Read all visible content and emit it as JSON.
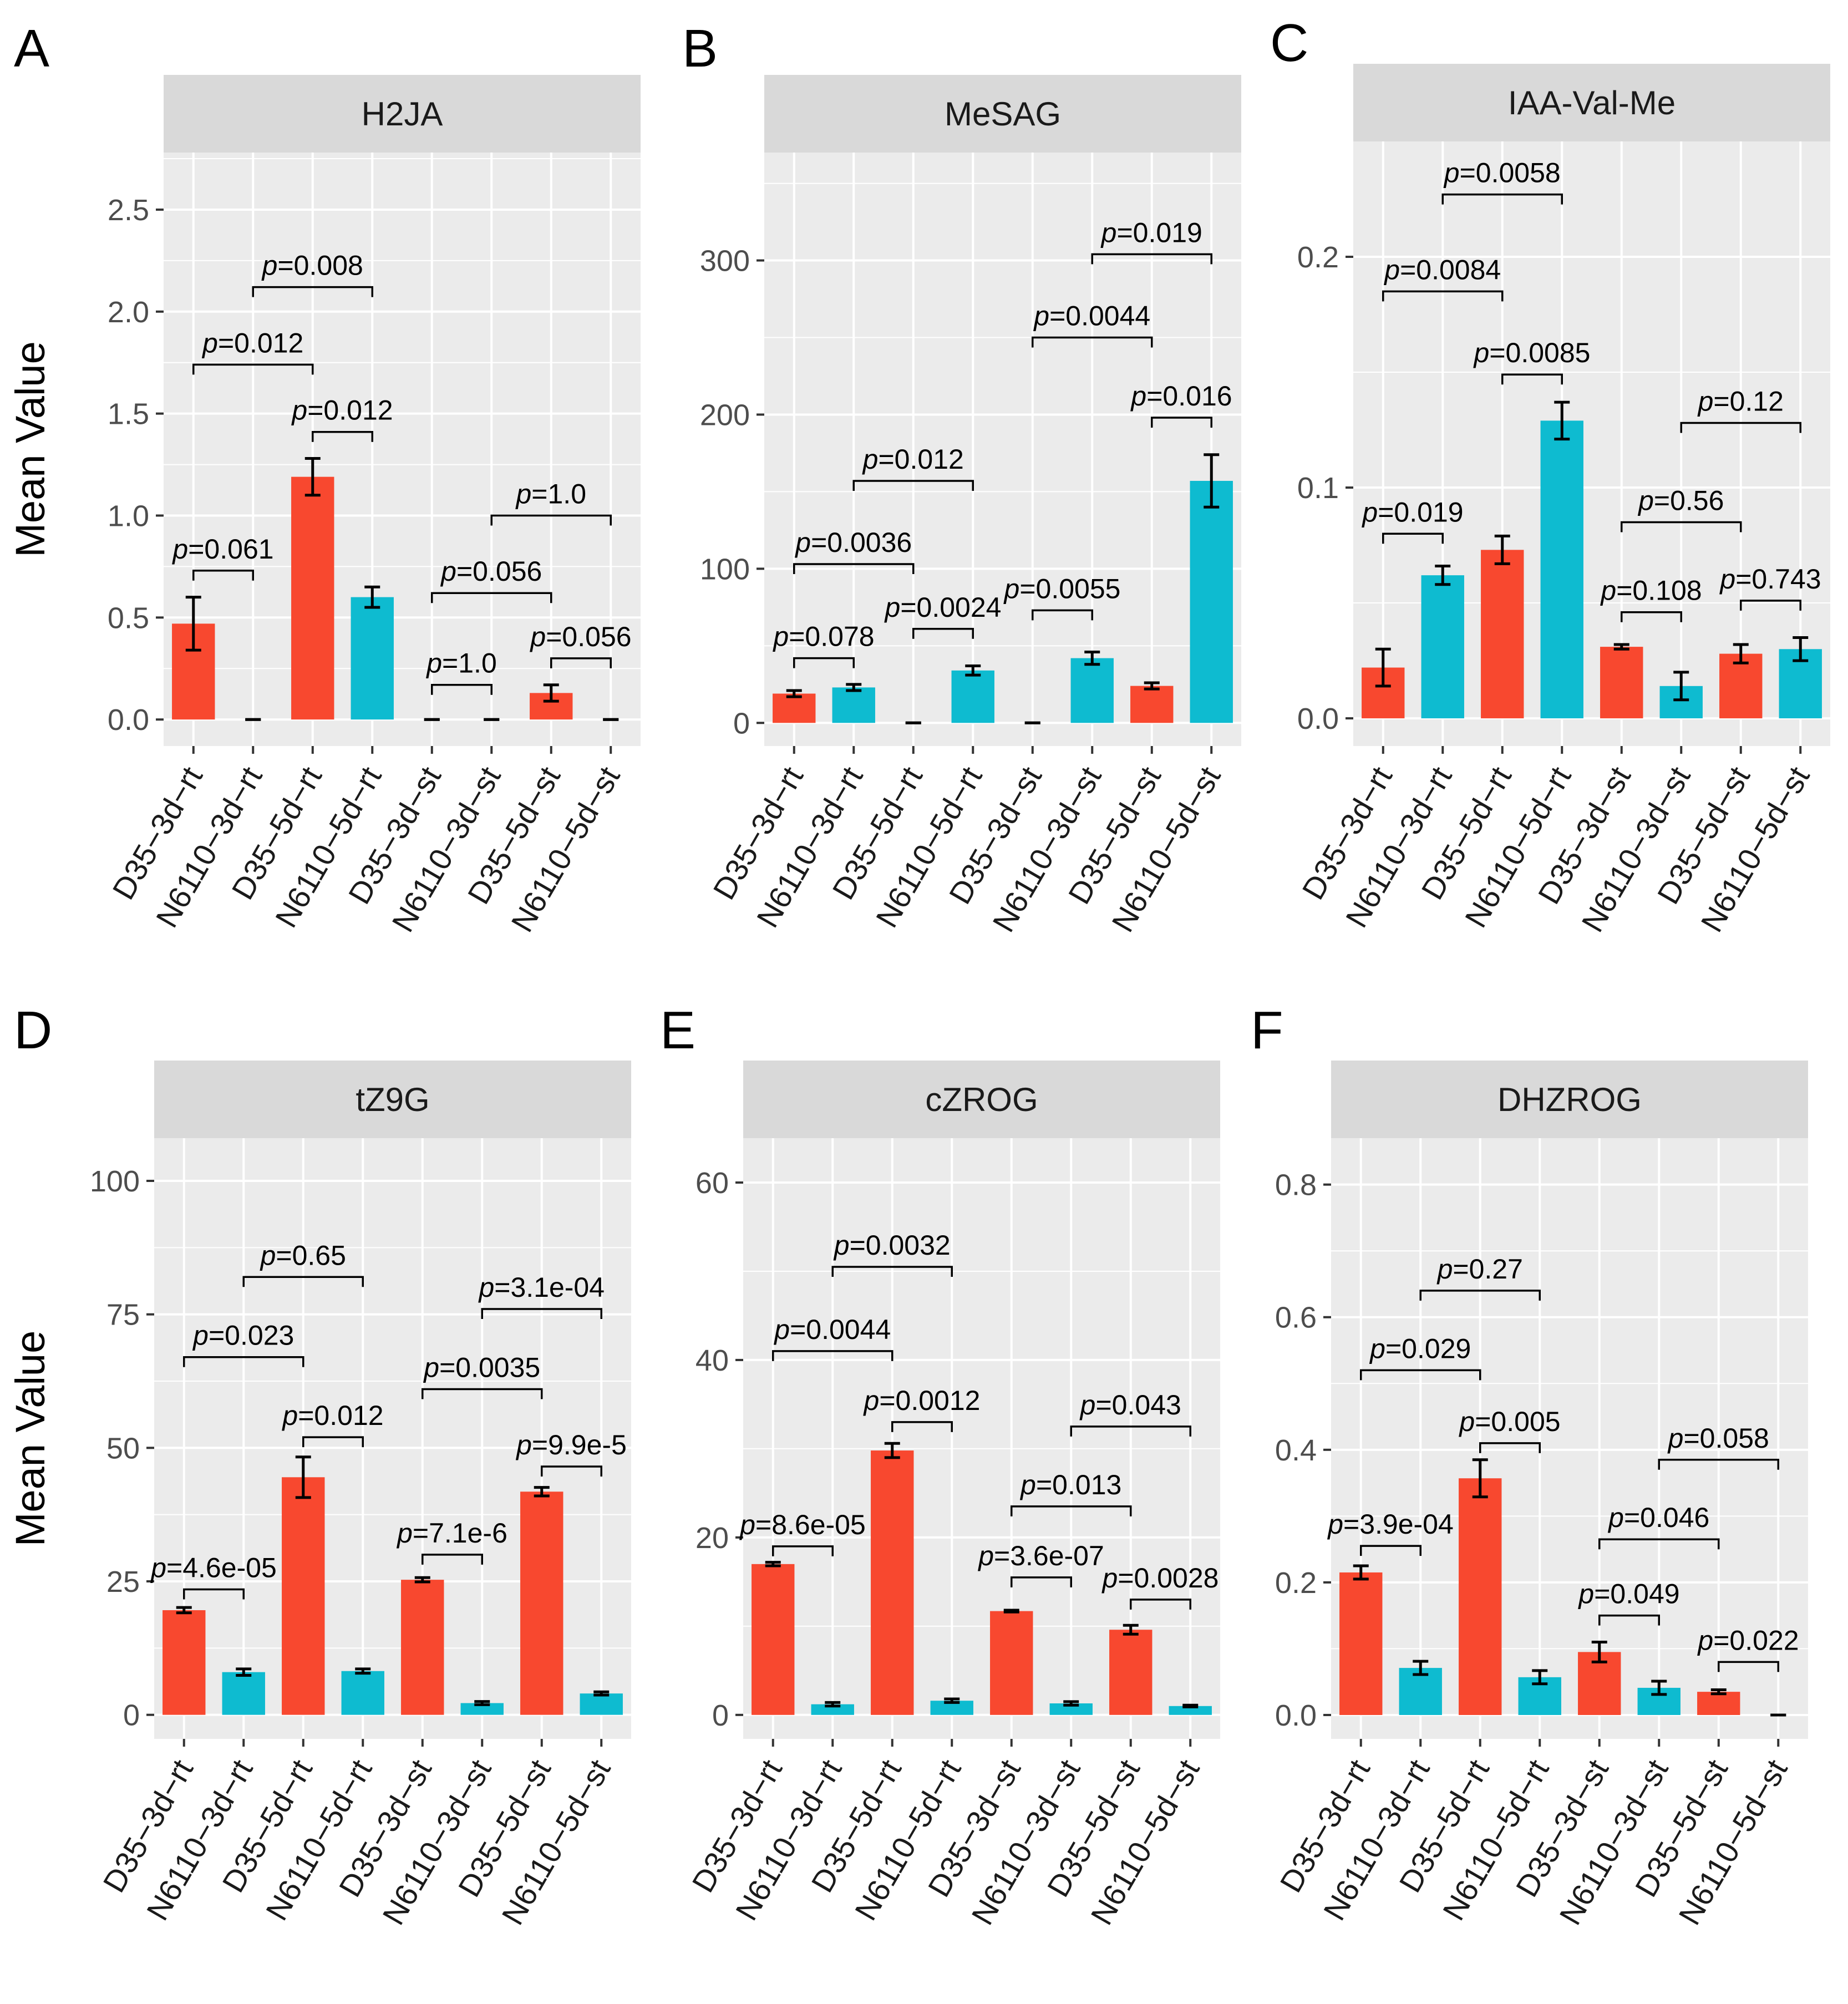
{
  "figure": {
    "ylabel": "Mean Value",
    "colors": {
      "D35": "#F8482F",
      "N6110": "#0EBBD0",
      "panel_bg": "#EBEBEB",
      "strip_bg": "#D9D9D9",
      "grid": "#FFFFFF"
    },
    "categories": [
      "D35−3d−rt",
      "N6110−3d−rt",
      "D35−5d−rt",
      "N6110−5d−rt",
      "D35−3d−st",
      "N6110−3d−st",
      "D35−5d−st",
      "N6110−5d−st"
    ],
    "groups": [
      "D35",
      "N6110",
      "D35",
      "N6110",
      "D35",
      "N6110",
      "D35",
      "N6110"
    ]
  },
  "chart_data": [
    {
      "type": "bar",
      "letter": "A",
      "title": "H2JA",
      "xlabel": "",
      "ylabel": "Mean Value",
      "ylim": [
        -0.13,
        2.78
      ],
      "ticks": [
        0.0,
        0.5,
        1.0,
        1.5,
        2.0,
        2.5
      ],
      "tick_labels": [
        "0.0",
        "0.5",
        "1.0",
        "1.5",
        "2.0",
        "2.5"
      ],
      "values": [
        0.47,
        0.0,
        1.19,
        0.6,
        0.0,
        0.0,
        0.13,
        0.0
      ],
      "errors": [
        0.13,
        0.0,
        0.09,
        0.05,
        0.0,
        0.0,
        0.04,
        0.0
      ],
      "comparisons": [
        {
          "i": 0,
          "j": 1,
          "y": 0.73,
          "label": "p=0.061"
        },
        {
          "i": 0,
          "j": 2,
          "y": 1.74,
          "label": "p=0.012"
        },
        {
          "i": 1,
          "j": 3,
          "y": 2.12,
          "label": "p=0.008"
        },
        {
          "i": 2,
          "j": 3,
          "y": 1.41,
          "label": "p=0.012"
        },
        {
          "i": 4,
          "j": 5,
          "y": 0.17,
          "label": "p=1.0"
        },
        {
          "i": 4,
          "j": 6,
          "y": 0.62,
          "label": "p=0.056"
        },
        {
          "i": 5,
          "j": 7,
          "y": 1.0,
          "label": "p=1.0"
        },
        {
          "i": 6,
          "j": 7,
          "y": 0.3,
          "label": "p=0.056"
        }
      ]
    },
    {
      "type": "bar",
      "letter": "B",
      "title": "MeSAG",
      "xlabel": "",
      "ylabel": "",
      "ylim": [
        -15,
        370
      ],
      "ticks": [
        0,
        100,
        200,
        300
      ],
      "tick_labels": [
        "0",
        "100",
        "200",
        "300"
      ],
      "values": [
        19,
        23,
        0,
        34,
        0,
        42,
        24,
        157
      ],
      "errors": [
        2,
        2,
        0,
        3,
        0,
        4,
        2,
        17
      ],
      "comparisons": [
        {
          "i": 0,
          "j": 1,
          "y": 42,
          "label": "p=0.078"
        },
        {
          "i": 0,
          "j": 2,
          "y": 103,
          "label": "p=0.0036"
        },
        {
          "i": 1,
          "j": 3,
          "y": 157,
          "label": "p=0.012"
        },
        {
          "i": 2,
          "j": 3,
          "y": 61,
          "label": "p=0.0024"
        },
        {
          "i": 4,
          "j": 5,
          "y": 73,
          "label": "p=0.0055"
        },
        {
          "i": 4,
          "j": 6,
          "y": 250,
          "label": "p=0.0044"
        },
        {
          "i": 5,
          "j": 7,
          "y": 304,
          "label": "p=0.019"
        },
        {
          "i": 6,
          "j": 7,
          "y": 198,
          "label": "p=0.016"
        }
      ]
    },
    {
      "type": "bar",
      "letter": "C",
      "title": "IAA-Val-Me",
      "xlabel": "",
      "ylabel": "",
      "ylim": [
        -0.012,
        0.25
      ],
      "ticks": [
        0.0,
        0.1,
        0.2
      ],
      "tick_labels": [
        "0.0",
        "0.1",
        "0.2"
      ],
      "values": [
        0.022,
        0.062,
        0.073,
        0.129,
        0.031,
        0.014,
        0.028,
        0.03
      ],
      "errors": [
        0.008,
        0.004,
        0.006,
        0.008,
        0.001,
        0.006,
        0.004,
        0.005
      ],
      "comparisons": [
        {
          "i": 0,
          "j": 1,
          "y": 0.08,
          "label": "p=0.019"
        },
        {
          "i": 0,
          "j": 2,
          "y": 0.185,
          "label": "p=0.0084"
        },
        {
          "i": 1,
          "j": 3,
          "y": 0.227,
          "label": "p=0.0058"
        },
        {
          "i": 2,
          "j": 3,
          "y": 0.149,
          "label": "p=0.0085"
        },
        {
          "i": 4,
          "j": 5,
          "y": 0.046,
          "label": "p=0.108"
        },
        {
          "i": 4,
          "j": 6,
          "y": 0.085,
          "label": "p=0.56"
        },
        {
          "i": 5,
          "j": 7,
          "y": 0.128,
          "label": "p=0.12"
        },
        {
          "i": 6,
          "j": 7,
          "y": 0.051,
          "label": "p=0.743"
        }
      ]
    },
    {
      "type": "bar",
      "letter": "D",
      "title": "tZ9G",
      "xlabel": "",
      "ylabel": "Mean Value",
      "ylim": [
        -4.5,
        108
      ],
      "ticks": [
        0,
        25,
        50,
        75,
        100
      ],
      "tick_labels": [
        "0",
        "25",
        "50",
        "75",
        "100"
      ],
      "values": [
        19.6,
        8.0,
        44.5,
        8.2,
        25.3,
        2.2,
        41.8,
        4.0
      ],
      "errors": [
        0.5,
        0.6,
        3.8,
        0.4,
        0.4,
        0.3,
        0.8,
        0.3
      ],
      "comparisons": [
        {
          "i": 0,
          "j": 1,
          "y": 23.5,
          "label": "p=4.6e-05"
        },
        {
          "i": 0,
          "j": 2,
          "y": 67.0,
          "label": "p=0.023"
        },
        {
          "i": 1,
          "j": 3,
          "y": 82.0,
          "label": "p=0.65"
        },
        {
          "i": 2,
          "j": 3,
          "y": 52.0,
          "label": "p=0.012"
        },
        {
          "i": 4,
          "j": 5,
          "y": 30.0,
          "label": "p=7.1e-6"
        },
        {
          "i": 4,
          "j": 6,
          "y": 61.0,
          "label": "p=0.0035"
        },
        {
          "i": 5,
          "j": 7,
          "y": 76.0,
          "label": "p=3.1e-04"
        },
        {
          "i": 6,
          "j": 7,
          "y": 46.5,
          "label": "p=9.9e-5"
        }
      ]
    },
    {
      "type": "bar",
      "letter": "E",
      "title": "cZROG",
      "xlabel": "",
      "ylabel": "",
      "ylim": [
        -2.7,
        65
      ],
      "ticks": [
        0,
        20,
        40,
        60
      ],
      "tick_labels": [
        "0",
        "20",
        "40",
        "60"
      ],
      "values": [
        17.0,
        1.2,
        29.8,
        1.6,
        11.7,
        1.3,
        9.6,
        1.0
      ],
      "errors": [
        0.2,
        0.2,
        0.8,
        0.2,
        0.1,
        0.2,
        0.5,
        0.1
      ],
      "comparisons": [
        {
          "i": 0,
          "j": 1,
          "y": 19.0,
          "label": "p=8.6e-05"
        },
        {
          "i": 0,
          "j": 2,
          "y": 41.0,
          "label": "p=0.0044"
        },
        {
          "i": 1,
          "j": 3,
          "y": 50.5,
          "label": "p=0.0032"
        },
        {
          "i": 2,
          "j": 3,
          "y": 33.0,
          "label": "p=0.0012"
        },
        {
          "i": 4,
          "j": 5,
          "y": 15.5,
          "label": "p=3.6e-07"
        },
        {
          "i": 4,
          "j": 6,
          "y": 23.5,
          "label": "p=0.013"
        },
        {
          "i": 5,
          "j": 7,
          "y": 32.5,
          "label": "p=0.043"
        },
        {
          "i": 6,
          "j": 7,
          "y": 13.0,
          "label": "p=0.0028"
        }
      ]
    },
    {
      "type": "bar",
      "letter": "F",
      "title": "DHZROG",
      "xlabel": "",
      "ylabel": "",
      "ylim": [
        -0.036,
        0.87
      ],
      "ticks": [
        0.0,
        0.2,
        0.4,
        0.6,
        0.8
      ],
      "tick_labels": [
        "0.0",
        "0.2",
        "0.4",
        "0.6",
        "0.8"
      ],
      "values": [
        0.215,
        0.071,
        0.357,
        0.057,
        0.095,
        0.041,
        0.035,
        0.0
      ],
      "errors": [
        0.01,
        0.01,
        0.028,
        0.01,
        0.015,
        0.01,
        0.003,
        0.0
      ],
      "comparisons": [
        {
          "i": 0,
          "j": 1,
          "y": 0.255,
          "label": "p=3.9e-04"
        },
        {
          "i": 0,
          "j": 2,
          "y": 0.52,
          "label": "p=0.029"
        },
        {
          "i": 1,
          "j": 3,
          "y": 0.64,
          "label": "p=0.27"
        },
        {
          "i": 2,
          "j": 3,
          "y": 0.41,
          "label": "p=0.005"
        },
        {
          "i": 4,
          "j": 5,
          "y": 0.15,
          "label": "p=0.049"
        },
        {
          "i": 4,
          "j": 6,
          "y": 0.265,
          "label": "p=0.046"
        },
        {
          "i": 5,
          "j": 7,
          "y": 0.385,
          "label": "p=0.058"
        },
        {
          "i": 6,
          "j": 7,
          "y": 0.08,
          "label": "p=0.022"
        }
      ]
    }
  ]
}
